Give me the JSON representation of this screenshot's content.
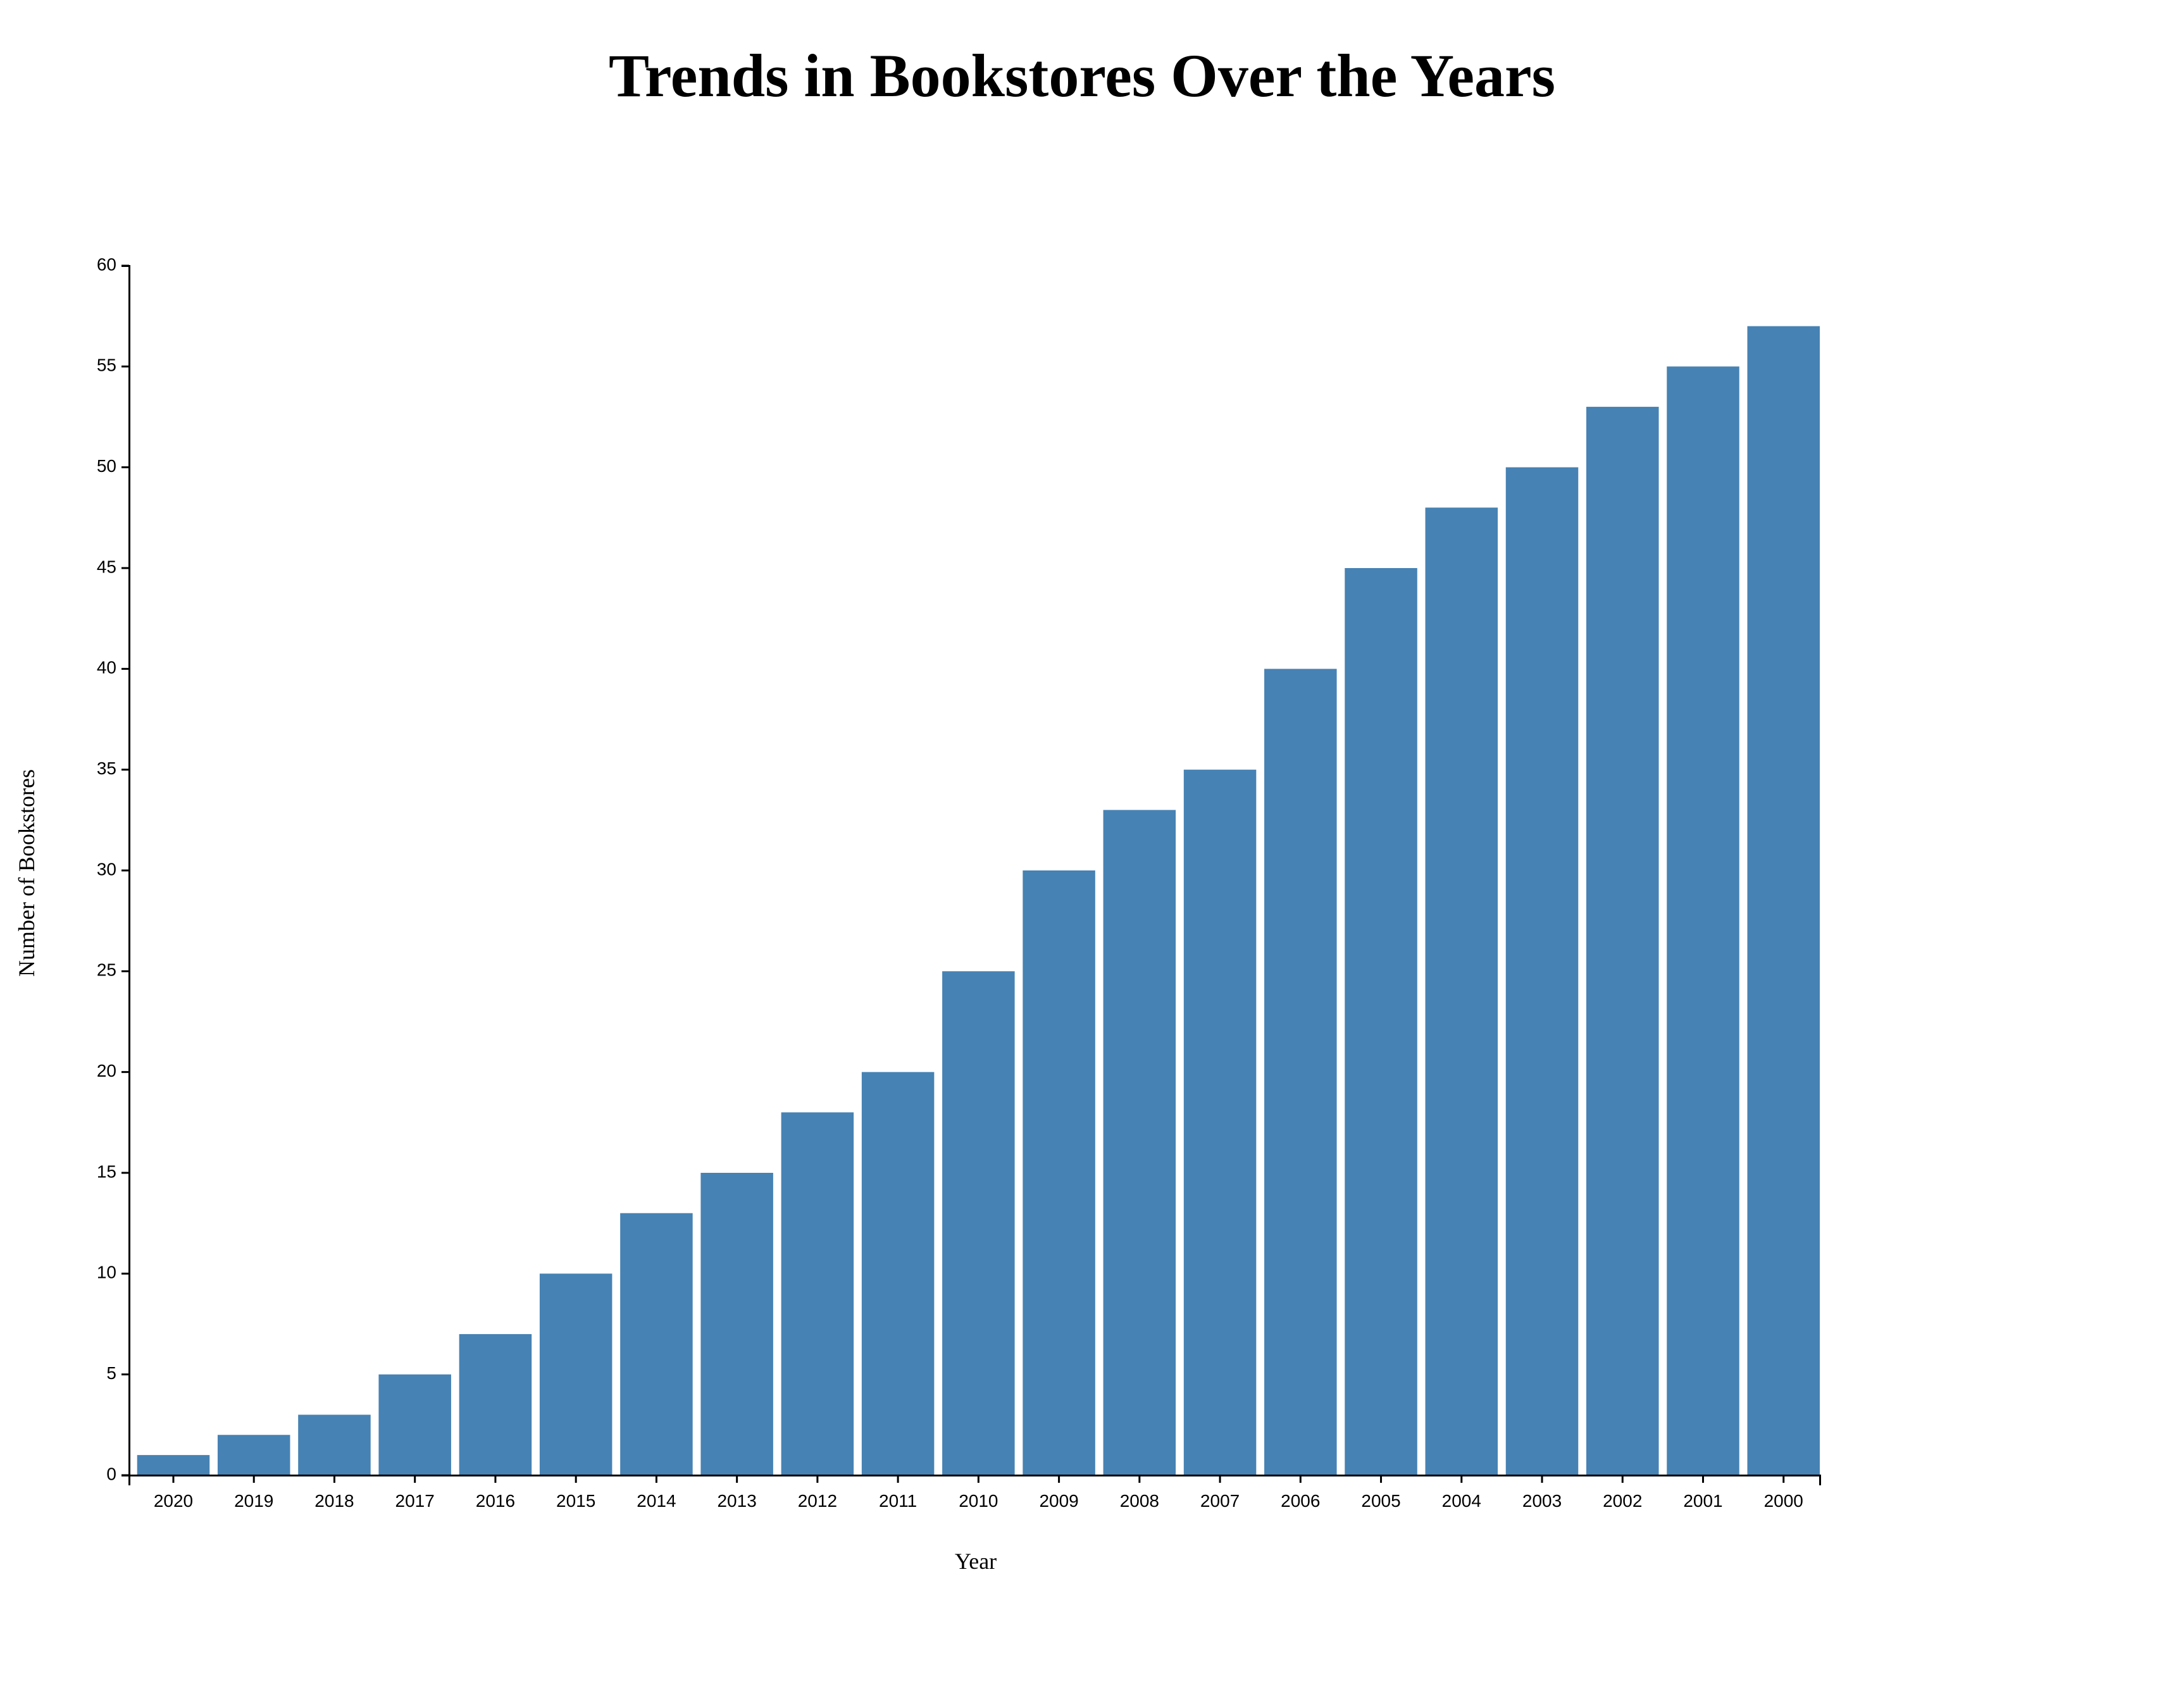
{
  "chart_data": {
    "type": "bar",
    "title": "Trends in Bookstores Over the Years",
    "xlabel": "Year",
    "ylabel": "Number of Bookstores",
    "categories": [
      "2020",
      "2019",
      "2018",
      "2017",
      "2016",
      "2015",
      "2014",
      "2013",
      "2012",
      "2011",
      "2010",
      "2009",
      "2008",
      "2007",
      "2006",
      "2005",
      "2004",
      "2003",
      "2002",
      "2001",
      "2000"
    ],
    "values": [
      1,
      2,
      3,
      5,
      7,
      10,
      13,
      15,
      18,
      20,
      25,
      30,
      33,
      35,
      40,
      45,
      48,
      50,
      53,
      55,
      57
    ],
    "ylim": [
      0,
      60
    ],
    "yticks": [
      0,
      5,
      10,
      15,
      20,
      25,
      30,
      35,
      40,
      45,
      50,
      55,
      60
    ],
    "bar_color": "#4682b4",
    "grid": false,
    "legend": "none"
  }
}
